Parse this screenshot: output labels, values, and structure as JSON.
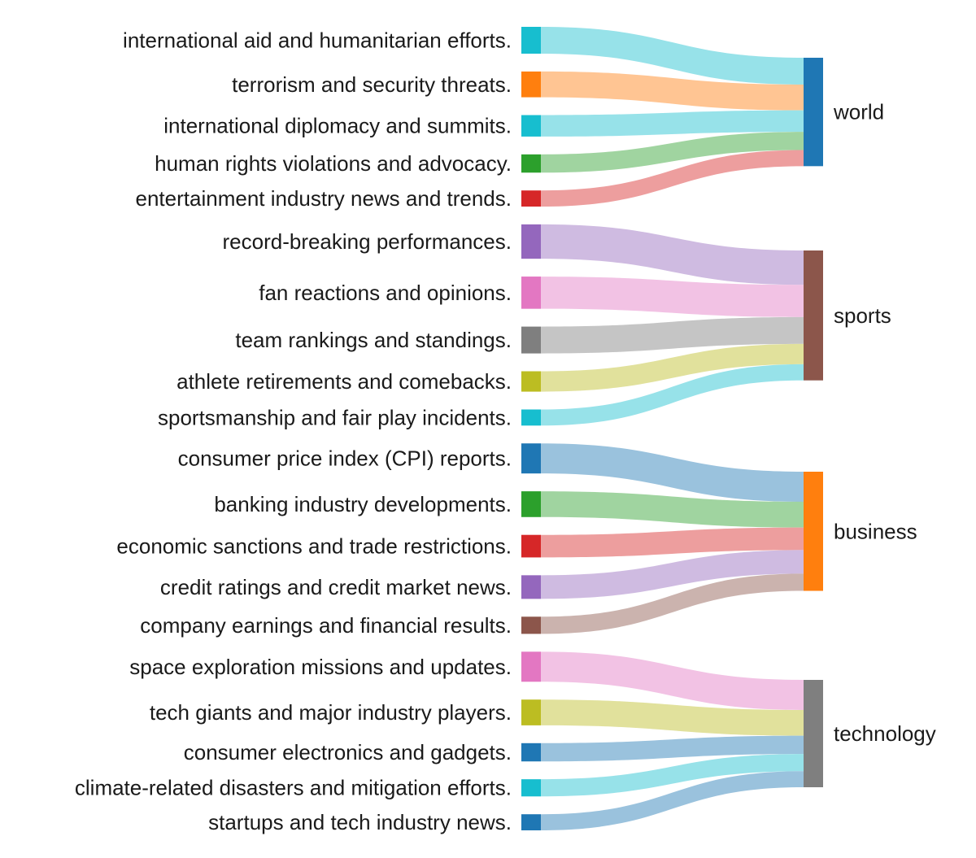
{
  "chart_data": {
    "type": "sankey",
    "sources": [
      {
        "label": "international aid and humanitarian efforts.",
        "color": "#17becf",
        "target": "world",
        "value": 2.5
      },
      {
        "label": "terrorism and security threats.",
        "color": "#ff7f0e",
        "target": "world",
        "value": 2.4
      },
      {
        "label": "international diplomacy and summits.",
        "color": "#17becf",
        "target": "world",
        "value": 2.0
      },
      {
        "label": "human rights violations and advocacy.",
        "color": "#2ca02c",
        "target": "world",
        "value": 1.7
      },
      {
        "label": "entertainment industry news and trends.",
        "color": "#d62728",
        "target": "world",
        "value": 1.5
      },
      {
        "label": "record-breaking performances.",
        "color": "#9467bd",
        "target": "sports",
        "value": 3.2
      },
      {
        "label": "fan reactions and opinions.",
        "color": "#e377c2",
        "target": "sports",
        "value": 3.0
      },
      {
        "label": "team rankings and standings.",
        "color": "#7f7f7f",
        "target": "sports",
        "value": 2.5
      },
      {
        "label": "athlete retirements and comebacks.",
        "color": "#bcbd22",
        "target": "sports",
        "value": 1.9
      },
      {
        "label": "sportsmanship and fair play incidents.",
        "color": "#17becf",
        "target": "sports",
        "value": 1.5
      },
      {
        "label": "consumer price index (CPI) reports.",
        "color": "#1f77b4",
        "target": "business",
        "value": 2.8
      },
      {
        "label": "banking industry developments.",
        "color": "#2ca02c",
        "target": "business",
        "value": 2.4
      },
      {
        "label": "economic sanctions and trade restrictions.",
        "color": "#d62728",
        "target": "business",
        "value": 2.1
      },
      {
        "label": "credit ratings and credit market news.",
        "color": "#9467bd",
        "target": "business",
        "value": 2.2
      },
      {
        "label": "company earnings and financial results.",
        "color": "#8c564b",
        "target": "business",
        "value": 1.6
      },
      {
        "label": "space exploration missions and updates.",
        "color": "#e377c2",
        "target": "technology",
        "value": 2.8
      },
      {
        "label": "tech giants and major industry players.",
        "color": "#bcbd22",
        "target": "technology",
        "value": 2.4
      },
      {
        "label": "consumer electronics and gadgets.",
        "color": "#1f77b4",
        "target": "technology",
        "value": 1.7
      },
      {
        "label": "climate-related disasters and mitigation efforts.",
        "color": "#17becf",
        "target": "technology",
        "value": 1.6
      },
      {
        "label": "startups and tech industry news.",
        "color": "#1f77b4",
        "target": "technology",
        "value": 1.5
      }
    ],
    "targets": [
      {
        "label": "world",
        "color": "#1f77b4"
      },
      {
        "label": "sports",
        "color": "#8c564b"
      },
      {
        "label": "business",
        "color": "#ff7f0e"
      },
      {
        "label": "technology",
        "color": "#7f7f7f"
      }
    ]
  }
}
